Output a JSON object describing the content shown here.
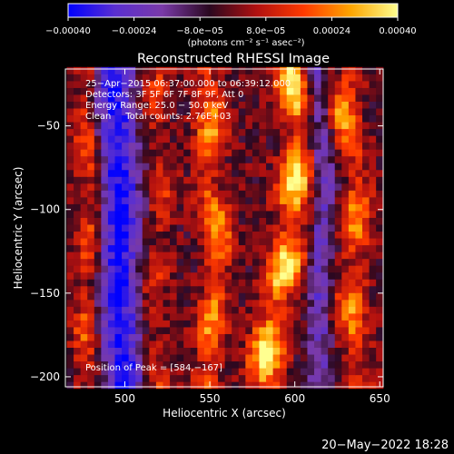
{
  "colorbar": {
    "tick_labels": [
      "−0.00040",
      "−0.00024",
      "−8.0e−05",
      "8.0e−05",
      "0.00024",
      "0.00040"
    ],
    "tick_values": [
      -0.0004,
      -0.00024,
      -8e-05,
      8e-05,
      0.00024,
      0.0004
    ],
    "range": [
      -0.0004,
      0.0004
    ],
    "unit_label": "(photons cm⁻² s⁻¹ asec⁻²)",
    "colors": [
      "#0000ff",
      "#5a2fd0",
      "#7a3aa8",
      "#2a0820",
      "#b01010",
      "#ff3a00",
      "#ffa500",
      "#ffff90"
    ]
  },
  "title": "Reconstructed RHESSI Image",
  "annotations": [
    "25−Apr−2015 06:37:00.000 to 06:39:12.000",
    "Detectors: 3F 5F 6F 7F 8F 9F, Att 0",
    "Energy Range: 25.0 − 50.0 keV",
    "Clean     Total counts: 2.76E+03"
  ],
  "peak_label": "Position of Peak = [584,−167]",
  "footer": {
    "timestamp": "20−May−2022 18:28"
  },
  "chart_data": {
    "type": "heatmap",
    "title": "Reconstructed RHESSI Image",
    "xlabel": "Heliocentric X (arcsec)",
    "ylabel": "Heliocentric Y (arcsec)",
    "xlim": [
      465,
      652
    ],
    "ylim": [
      -206,
      -16
    ],
    "x_ticks": [
      500,
      550,
      600,
      650
    ],
    "y_ticks": [
      -50,
      -100,
      -150,
      -200
    ],
    "x_tick_labels": [
      "500",
      "550",
      "600",
      "650"
    ],
    "y_tick_labels": [
      "−50",
      "−100",
      "−150",
      "−200"
    ],
    "peak": [
      584,
      -167
    ],
    "value_range": [
      -0.0004,
      0.0004
    ],
    "grid_x": [
      468,
      650
    ],
    "grid_y": [
      -205,
      -17
    ],
    "grid_size": [
      46,
      47
    ],
    "ridges": [
      {
        "x": [
          [
            -205,
            582
          ],
          [
            -170,
            585
          ],
          [
            -130,
            596
          ],
          [
            -90,
            600
          ],
          [
            -50,
            604
          ],
          [
            -20,
            598
          ]
        ],
        "amp": 0.0004,
        "width": 7
      },
      {
        "x": [
          [
            -205,
            548
          ],
          [
            -160,
            552
          ],
          [
            -120,
            556
          ],
          [
            -80,
            548
          ],
          [
            -40,
            552
          ],
          [
            -20,
            548
          ]
        ],
        "amp": 0.00028,
        "width": 6
      },
      {
        "x": [
          [
            -205,
            640
          ],
          [
            -160,
            632
          ],
          [
            -120,
            636
          ],
          [
            -80,
            638
          ],
          [
            -40,
            628
          ],
          [
            -20,
            632
          ]
        ],
        "amp": 0.00026,
        "width": 6
      },
      {
        "x": [
          [
            -205,
            478
          ],
          [
            -150,
            476
          ],
          [
            -100,
            482
          ],
          [
            -40,
            475
          ],
          [
            -20,
            478
          ]
        ],
        "amp": 0.0002,
        "width": 5
      },
      {
        "x": [
          [
            -205,
            520
          ],
          [
            -160,
            516
          ],
          [
            -120,
            520
          ],
          [
            -80,
            524
          ],
          [
            -40,
            516
          ],
          [
            -20,
            520
          ]
        ],
        "amp": 0.00014,
        "width": 5
      }
    ],
    "troughs": [
      {
        "x": [
          [
            -205,
            500
          ],
          [
            -150,
            496
          ],
          [
            -90,
            498
          ],
          [
            -30,
            494
          ]
        ],
        "amp": -0.00036,
        "width": 8
      },
      {
        "x": [
          [
            -205,
            615
          ],
          [
            -150,
            614
          ],
          [
            -90,
            618
          ],
          [
            -30,
            612
          ]
        ],
        "amp": -0.0002,
        "width": 5
      }
    ]
  }
}
